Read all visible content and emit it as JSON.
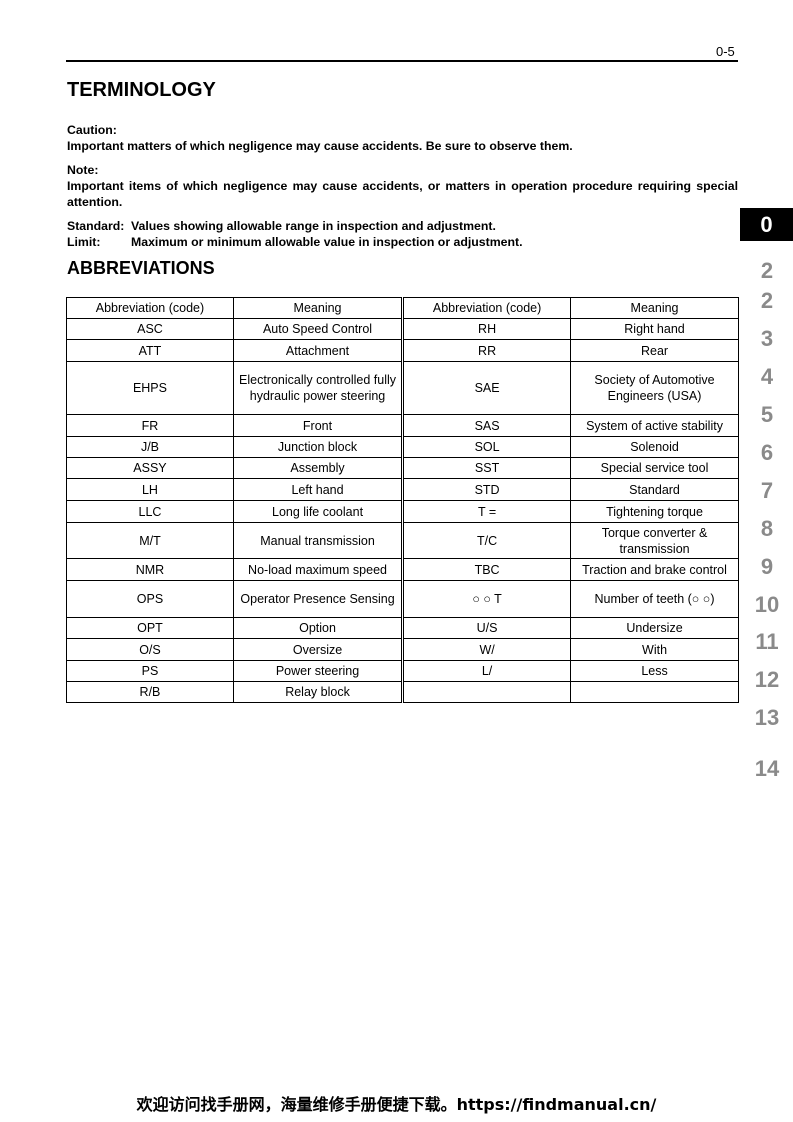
{
  "page_number": "0-5",
  "terminology": {
    "title": "TERMINOLOGY",
    "caution_label": "Caution:",
    "caution_text": "Important matters of which negligence may cause accidents. Be sure to observe them.",
    "note_label": "Note:",
    "note_text": "Important items of which negligence may cause accidents, or matters in operation procedure requiring special attention.",
    "standard_label": "Standard:",
    "standard_text": "Values showing allowable range in inspection and adjustment.",
    "limit_label": "Limit:",
    "limit_text": "Maximum or minimum allowable value in inspection or adjustment."
  },
  "abbreviations": {
    "title": "ABBREVIATIONS",
    "headers": [
      "Abbreviation (code)",
      "Meaning",
      "Abbreviation (code)",
      "Meaning"
    ],
    "rows": [
      [
        "ASC",
        "Auto Speed Control",
        "RH",
        "Right hand"
      ],
      [
        "ATT",
        "Attachment",
        "RR",
        "Rear"
      ],
      [
        "EHPS",
        "Electronically controlled fully hydraulic power steering",
        "SAE",
        "Society of Automotive Engineers (USA)"
      ],
      [
        "FR",
        "Front",
        "SAS",
        "System of active stability"
      ],
      [
        "J/B",
        "Junction block",
        "SOL",
        "Solenoid"
      ],
      [
        "ASSY",
        "Assembly",
        "SST",
        "Special service tool"
      ],
      [
        "LH",
        "Left hand",
        "STD",
        "Standard"
      ],
      [
        "LLC",
        "Long life coolant",
        "T =",
        "Tightening torque"
      ],
      [
        "M/T",
        "Manual transmission",
        "T/C",
        "Torque converter & transmission"
      ],
      [
        "NMR",
        "No-load maximum speed",
        "TBC",
        "Traction and brake control"
      ],
      [
        "OPS",
        "Operator Presence Sensing",
        "○ ○ T",
        "Number of teeth (○ ○)"
      ],
      [
        "OPT",
        "Option",
        "U/S",
        "Undersize"
      ],
      [
        "O/S",
        "Oversize",
        "W/",
        "With"
      ],
      [
        "PS",
        "Power steering",
        "L/",
        "Less"
      ],
      [
        "R/B",
        "Relay block",
        "",
        ""
      ]
    ]
  },
  "side_tabs": {
    "active": "0",
    "items": [
      "2",
      "2",
      "3",
      "4",
      "5",
      "6",
      "7",
      "8",
      "9",
      "10",
      "11",
      "12",
      "13",
      "14"
    ]
  },
  "footer": "欢迎访问找手册网，海量维修手册便捷下载。https://findmanual.cn/"
}
